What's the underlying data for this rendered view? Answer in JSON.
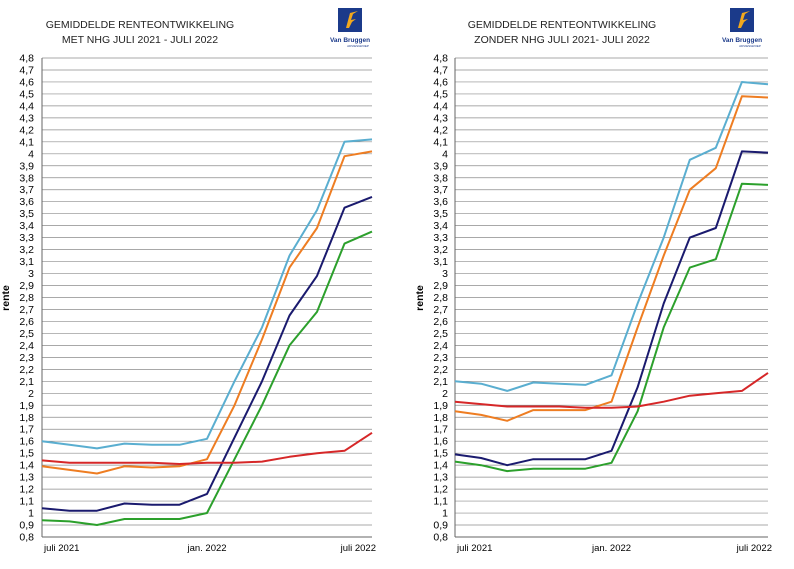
{
  "logo": {
    "brand": "Van Bruggen",
    "sub": "ADVIESGROEP"
  },
  "chart_data": [
    {
      "type": "line",
      "title_line1": "GEMIDDELDE RENTEONTWIKKELING",
      "title_line2": "MET NHG  JULI 2021 - JULI 2022",
      "ylabel": "rente",
      "ylim": [
        0.8,
        4.8
      ],
      "ystep": 0.1,
      "x": [
        0,
        1,
        2,
        3,
        4,
        5,
        6,
        7,
        8,
        9,
        10,
        11,
        12
      ],
      "xlabels": [
        {
          "pos": 0,
          "text": "juli 2021"
        },
        {
          "pos": 6,
          "text": "jan. 2022"
        },
        {
          "pos": 12,
          "text": "juli 2022"
        }
      ],
      "series": [
        {
          "name": "lichtblauw",
          "color": "#5aaed0",
          "values": [
            1.6,
            1.57,
            1.54,
            1.58,
            1.57,
            1.57,
            1.62,
            2.1,
            2.55,
            3.15,
            3.53,
            4.1,
            4.12
          ]
        },
        {
          "name": "oranje",
          "color": "#ee7d22",
          "values": [
            1.39,
            1.36,
            1.33,
            1.39,
            1.38,
            1.39,
            1.45,
            1.9,
            2.45,
            3.05,
            3.38,
            3.98,
            4.02
          ]
        },
        {
          "name": "donkerblauw",
          "color": "#1a1a6e",
          "values": [
            1.04,
            1.02,
            1.02,
            1.08,
            1.07,
            1.07,
            1.16,
            1.63,
            2.1,
            2.65,
            2.98,
            3.55,
            3.64
          ]
        },
        {
          "name": "groen",
          "color": "#2ca02c",
          "values": [
            0.94,
            0.93,
            0.9,
            0.95,
            0.95,
            0.95,
            1.0,
            1.45,
            1.9,
            2.4,
            2.68,
            3.25,
            3.35
          ]
        },
        {
          "name": "rood",
          "color": "#d62728",
          "values": [
            1.44,
            1.42,
            1.42,
            1.42,
            1.42,
            1.41,
            1.42,
            1.42,
            1.43,
            1.47,
            1.5,
            1.52,
            1.67
          ]
        }
      ]
    },
    {
      "type": "line",
      "title_line1": "GEMIDDELDE RENTEONTWIKKELING",
      "title_line2": "ZONDER NHG JULI 2021- JULI 2022",
      "ylabel": "rente",
      "ylim": [
        0.8,
        4.8
      ],
      "ystep": 0.1,
      "x": [
        0,
        1,
        2,
        3,
        4,
        5,
        6,
        7,
        8,
        9,
        10,
        11,
        12
      ],
      "xlabels": [
        {
          "pos": 0,
          "text": "juli 2021"
        },
        {
          "pos": 6,
          "text": "jan. 2022"
        },
        {
          "pos": 12,
          "text": "juli 2022"
        }
      ],
      "series": [
        {
          "name": "lichtblauw",
          "color": "#5aaed0",
          "values": [
            2.1,
            2.08,
            2.02,
            2.09,
            2.08,
            2.07,
            2.15,
            2.75,
            3.3,
            3.95,
            4.05,
            4.6,
            4.58
          ]
        },
        {
          "name": "oranje",
          "color": "#ee7d22",
          "values": [
            1.85,
            1.82,
            1.77,
            1.86,
            1.86,
            1.86,
            1.93,
            2.55,
            3.15,
            3.7,
            3.88,
            4.48,
            4.47
          ]
        },
        {
          "name": "donkerblauw",
          "color": "#1a1a6e",
          "values": [
            1.49,
            1.46,
            1.4,
            1.45,
            1.45,
            1.45,
            1.52,
            2.05,
            2.75,
            3.3,
            3.38,
            4.02,
            4.01
          ]
        },
        {
          "name": "groen",
          "color": "#2ca02c",
          "values": [
            1.43,
            1.4,
            1.35,
            1.37,
            1.37,
            1.37,
            1.42,
            1.85,
            2.55,
            3.05,
            3.12,
            3.75,
            3.74
          ]
        },
        {
          "name": "rood",
          "color": "#d62728",
          "values": [
            1.93,
            1.91,
            1.89,
            1.89,
            1.89,
            1.88,
            1.88,
            1.89,
            1.93,
            1.98,
            2.0,
            2.02,
            2.17
          ]
        }
      ]
    }
  ]
}
